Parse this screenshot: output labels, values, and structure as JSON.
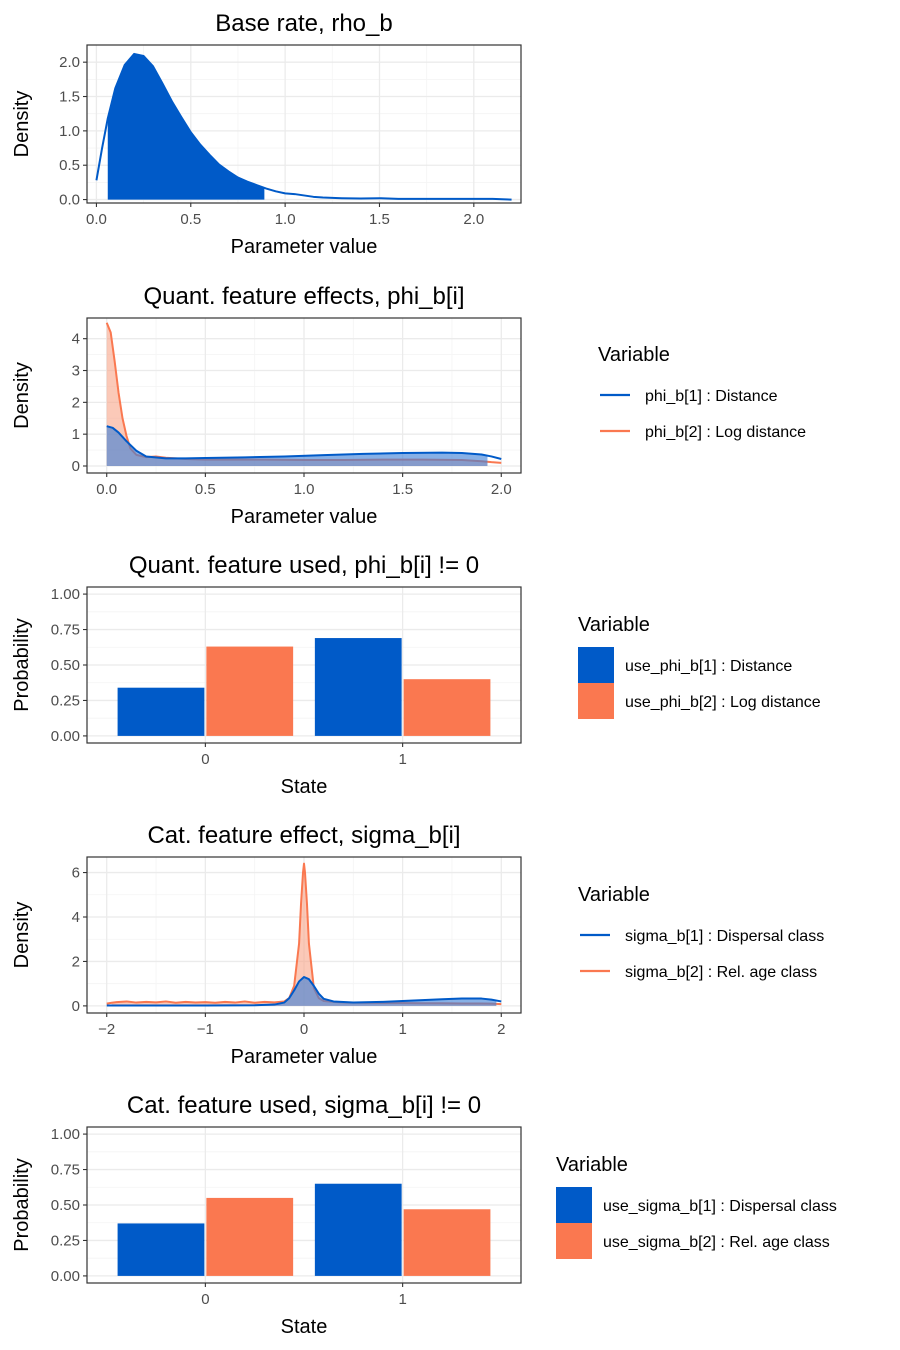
{
  "colors": {
    "blue": "#005ac8",
    "orange": "#fa7850",
    "blue_fill": "#3d7fd6",
    "orange_fill": "#f9a88c",
    "grid_major": "#ebebeb",
    "grid_minor": "#f4f4f4",
    "axis_text": "#4d4d4d",
    "panel_border": "#333333"
  },
  "chart_data": [
    {
      "type": "area",
      "title": "Base rate, rho_b",
      "xlabel": "Parameter value",
      "ylabel": "Density",
      "xlim": [
        -0.05,
        2.25
      ],
      "ylim": [
        -0.05,
        2.25
      ],
      "x_ticks": [
        0.0,
        0.5,
        1.0,
        1.5,
        2.0
      ],
      "x_tick_labels": [
        "0.0",
        "0.5",
        "1.0",
        "1.5",
        "2.0"
      ],
      "y_ticks": [
        0.0,
        0.5,
        1.0,
        1.5,
        2.0
      ],
      "y_tick_labels": [
        "0.0",
        "0.5",
        "1.0",
        "1.5",
        "2.0"
      ],
      "grid": true,
      "legend": null,
      "series": [
        {
          "color_key": "blue",
          "shaded_interval": [
            0.06,
            0.89
          ],
          "x": [
            0.0,
            0.03,
            0.06,
            0.1,
            0.15,
            0.2,
            0.25,
            0.3,
            0.35,
            0.4,
            0.45,
            0.5,
            0.55,
            0.6,
            0.65,
            0.7,
            0.75,
            0.8,
            0.85,
            0.9,
            0.95,
            1.0,
            1.05,
            1.1,
            1.15,
            1.2,
            1.3,
            1.4,
            1.5,
            1.6,
            1.7,
            1.8,
            1.9,
            2.0,
            2.1,
            2.2
          ],
          "y": [
            0.28,
            0.75,
            1.18,
            1.62,
            1.96,
            2.12,
            2.09,
            1.94,
            1.69,
            1.43,
            1.2,
            0.98,
            0.8,
            0.65,
            0.51,
            0.41,
            0.32,
            0.26,
            0.21,
            0.16,
            0.12,
            0.09,
            0.08,
            0.06,
            0.04,
            0.03,
            0.02,
            0.015,
            0.02,
            0.01,
            0.01,
            0.01,
            0.01,
            0.01,
            0.01,
            0.0
          ]
        }
      ]
    },
    {
      "type": "area",
      "title": "Quant. feature effects, phi_b[i]",
      "xlabel": "Parameter value",
      "ylabel": "Density",
      "xlim": [
        -0.1,
        2.1
      ],
      "ylim": [
        -0.22,
        4.65
      ],
      "x_ticks": [
        0.0,
        0.5,
        1.0,
        1.5,
        2.0
      ],
      "x_tick_labels": [
        "0.0",
        "0.5",
        "1.0",
        "1.5",
        "2.0"
      ],
      "y_ticks": [
        0,
        1,
        2,
        3,
        4
      ],
      "y_tick_labels": [
        "0",
        "1",
        "2",
        "3",
        "4"
      ],
      "grid": true,
      "legend": {
        "title": "Variable",
        "style": "line",
        "entries": [
          {
            "label": "phi_b[1] : Distance",
            "color_key": "blue"
          },
          {
            "label": "phi_b[2] : Log distance",
            "color_key": "orange"
          }
        ]
      },
      "series": [
        {
          "color_key": "orange",
          "shaded_interval": [
            0.0,
            1.93
          ],
          "x": [
            0.0,
            0.02,
            0.04,
            0.06,
            0.08,
            0.1,
            0.12,
            0.15,
            0.2,
            0.25,
            0.3,
            0.4,
            0.5,
            0.6,
            0.8,
            1.0,
            1.2,
            1.4,
            1.6,
            1.8,
            1.9,
            1.95,
            2.0
          ],
          "y": [
            4.5,
            4.2,
            3.3,
            2.3,
            1.5,
            0.95,
            0.55,
            0.35,
            0.28,
            0.3,
            0.26,
            0.22,
            0.2,
            0.2,
            0.2,
            0.19,
            0.19,
            0.2,
            0.2,
            0.19,
            0.15,
            0.12,
            0.1
          ]
        },
        {
          "color_key": "blue",
          "shaded_interval": [
            0.0,
            1.93
          ],
          "x": [
            0.0,
            0.03,
            0.06,
            0.1,
            0.15,
            0.2,
            0.3,
            0.4,
            0.5,
            0.7,
            0.9,
            1.1,
            1.3,
            1.5,
            1.7,
            1.8,
            1.9,
            1.95,
            2.0
          ],
          "y": [
            1.25,
            1.2,
            1.05,
            0.78,
            0.48,
            0.3,
            0.24,
            0.24,
            0.25,
            0.27,
            0.3,
            0.34,
            0.38,
            0.41,
            0.42,
            0.41,
            0.36,
            0.3,
            0.22
          ]
        }
      ]
    },
    {
      "type": "bar",
      "title": "Quant. feature used, phi_b[i] != 0",
      "xlabel": "State",
      "ylabel": "Probability",
      "categories": [
        "0",
        "1"
      ],
      "ylim": [
        -0.05,
        1.05
      ],
      "y_ticks": [
        0.0,
        0.25,
        0.5,
        0.75,
        1.0
      ],
      "y_tick_labels": [
        "0.00",
        "0.25",
        "0.50",
        "0.75",
        "1.00"
      ],
      "grid": true,
      "legend": {
        "title": "Variable",
        "style": "box",
        "entries": [
          {
            "label": "use_phi_b[1] : Distance",
            "color_key": "blue"
          },
          {
            "label": "use_phi_b[2] : Log distance",
            "color_key": "orange"
          }
        ]
      },
      "series": [
        {
          "name": "use_phi_b[1] : Distance",
          "color_key": "blue",
          "values": [
            0.34,
            0.69
          ]
        },
        {
          "name": "use_phi_b[2] : Log distance",
          "color_key": "orange",
          "values": [
            0.63,
            0.4
          ]
        }
      ]
    },
    {
      "type": "area",
      "title": "Cat. feature effect, sigma_b[i]",
      "xlabel": "Parameter value",
      "ylabel": "Density",
      "xlim": [
        -2.2,
        2.2
      ],
      "ylim": [
        -0.32,
        6.7
      ],
      "x_ticks": [
        -2,
        -1,
        0,
        1,
        2
      ],
      "x_tick_labels": [
        "−2",
        "−1",
        "0",
        "1",
        "2"
      ],
      "y_ticks": [
        0,
        2,
        4,
        6
      ],
      "y_tick_labels": [
        "0",
        "2",
        "4",
        "6"
      ],
      "grid": true,
      "legend": {
        "title": "Variable",
        "style": "line",
        "entries": [
          {
            "label": "sigma_b[1] : Dispersal class",
            "color_key": "blue"
          },
          {
            "label": "sigma_b[2] : Rel. age class",
            "color_key": "orange"
          }
        ]
      },
      "series": [
        {
          "color_key": "orange",
          "shaded_interval": [
            -1.95,
            1.95
          ],
          "x": [
            -2.0,
            -1.95,
            -1.9,
            -1.8,
            -1.7,
            -1.6,
            -1.5,
            -1.4,
            -1.3,
            -1.2,
            -1.1,
            -1.0,
            -0.9,
            -0.8,
            -0.7,
            -0.6,
            -0.5,
            -0.4,
            -0.3,
            -0.2,
            -0.15,
            -0.1,
            -0.05,
            -0.03,
            -0.01,
            0.0,
            0.01,
            0.03,
            0.05,
            0.1,
            0.15,
            0.2,
            0.3,
            0.4,
            0.6,
            0.8,
            1.0,
            1.2,
            1.4,
            1.6,
            1.8,
            1.9,
            2.0
          ],
          "y": [
            0.1,
            0.14,
            0.17,
            0.2,
            0.15,
            0.18,
            0.16,
            0.2,
            0.14,
            0.18,
            0.15,
            0.17,
            0.14,
            0.18,
            0.15,
            0.2,
            0.14,
            0.18,
            0.16,
            0.2,
            0.35,
            0.9,
            2.8,
            4.6,
            6.0,
            6.4,
            6.0,
            4.6,
            2.8,
            0.8,
            0.35,
            0.22,
            0.18,
            0.15,
            0.14,
            0.13,
            0.13,
            0.12,
            0.12,
            0.11,
            0.11,
            0.1,
            0.08
          ]
        },
        {
          "color_key": "blue",
          "shaded_interval": [
            -1.95,
            1.95
          ],
          "x": [
            -2.0,
            -1.5,
            -1.0,
            -0.5,
            -0.3,
            -0.2,
            -0.15,
            -0.1,
            -0.05,
            0.0,
            0.05,
            0.1,
            0.15,
            0.2,
            0.3,
            0.5,
            0.8,
            1.0,
            1.2,
            1.4,
            1.6,
            1.8,
            1.9,
            2.0
          ],
          "y": [
            0.02,
            0.02,
            0.02,
            0.03,
            0.06,
            0.15,
            0.35,
            0.7,
            1.1,
            1.3,
            1.2,
            0.9,
            0.55,
            0.32,
            0.2,
            0.15,
            0.18,
            0.22,
            0.26,
            0.3,
            0.33,
            0.33,
            0.28,
            0.2
          ]
        }
      ]
    },
    {
      "type": "bar",
      "title": "Cat. feature used, sigma_b[i] != 0",
      "xlabel": "State",
      "ylabel": "Probability",
      "categories": [
        "0",
        "1"
      ],
      "ylim": [
        -0.05,
        1.05
      ],
      "y_ticks": [
        0.0,
        0.25,
        0.5,
        0.75,
        1.0
      ],
      "y_tick_labels": [
        "0.00",
        "0.25",
        "0.50",
        "0.75",
        "1.00"
      ],
      "grid": true,
      "legend": {
        "title": "Variable",
        "style": "box",
        "entries": [
          {
            "label": "use_sigma_b[1] : Dispersal class",
            "color_key": "blue"
          },
          {
            "label": "use_sigma_b[2] : Rel. age class",
            "color_key": "orange"
          }
        ]
      },
      "series": [
        {
          "name": "use_sigma_b[1] : Dispersal class",
          "color_key": "blue",
          "values": [
            0.37,
            0.65
          ]
        },
        {
          "name": "use_sigma_b[2] : Rel. age class",
          "color_key": "orange",
          "values": [
            0.55,
            0.47
          ]
        }
      ]
    }
  ]
}
